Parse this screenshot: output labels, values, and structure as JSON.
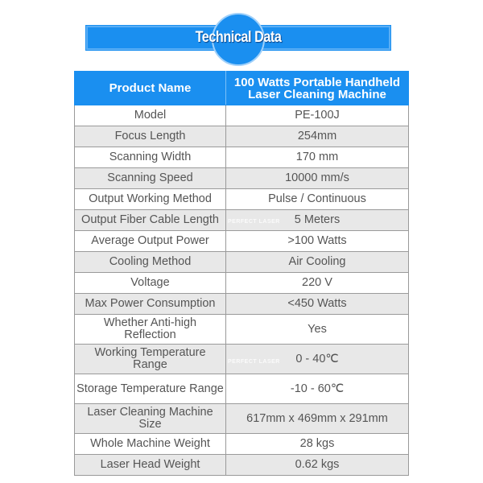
{
  "title": "Technical Data",
  "watermark": "PERFECT LASER",
  "colors": {
    "accent": "#1a8ff0",
    "row_alt": "#e8e8e8"
  },
  "header": {
    "key": "Product Name",
    "value": "100 Watts Portable Handheld Laser Cleaning Machine"
  },
  "rows": [
    {
      "key": "Model",
      "value": "PE-100J"
    },
    {
      "key": "Focus Length",
      "value": "254mm"
    },
    {
      "key": "Scanning Width",
      "value": "170 mm"
    },
    {
      "key": "Scanning Speed",
      "value": "10000 mm/s"
    },
    {
      "key": "Output Working Method",
      "value": "Pulse / Continuous"
    },
    {
      "key": "Output Fiber Cable Length",
      "value": "5 Meters"
    },
    {
      "key": "Average Output Power",
      "value": ">100 Watts"
    },
    {
      "key": "Cooling Method",
      "value": "Air Cooling"
    },
    {
      "key": "Voltage",
      "value": "220 V"
    },
    {
      "key": "Max Power Consumption",
      "value": "<450 Watts"
    },
    {
      "key": "Whether Anti-high Reflection",
      "value": "Yes"
    },
    {
      "key": "Working Temperature Range",
      "value": "0 - 40℃"
    },
    {
      "key": "Storage Temperature Range",
      "value": "-10 - 60℃"
    },
    {
      "key": "Laser Cleaning Machine Size",
      "value": "617mm x 469mm x 291mm"
    },
    {
      "key": "Whole Machine Weight",
      "value": "28 kgs"
    },
    {
      "key": "Laser Head Weight",
      "value": "0.62 kgs"
    }
  ]
}
